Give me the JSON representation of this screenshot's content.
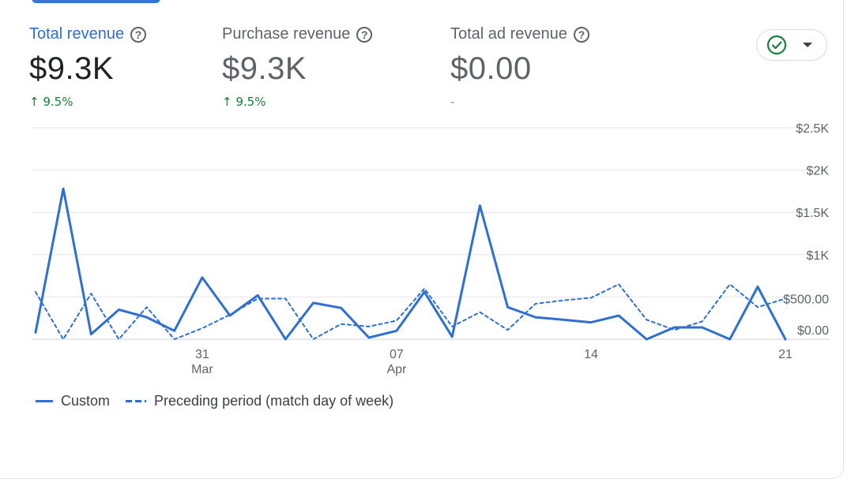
{
  "metrics": [
    {
      "title": "Total revenue",
      "value": "$9.3K",
      "change": "↑ 9.5%"
    },
    {
      "title": "Purchase revenue",
      "value": "$9.3K",
      "change": "↑ 9.5%"
    },
    {
      "title": "Total ad revenue",
      "value": "$0.00",
      "change": "-"
    }
  ],
  "colors": {
    "accent": "#2f6fd1",
    "positive": "#188038",
    "grid": "#e6e6e6"
  },
  "status_icon": "check-circle-icon",
  "chart_data": {
    "type": "line",
    "ylim": [
      0,
      2500
    ],
    "y_ticks": [
      {
        "value": 2500,
        "label": "$2.5K"
      },
      {
        "value": 2000,
        "label": "$2K"
      },
      {
        "value": 1500,
        "label": "$1.5K"
      },
      {
        "value": 1000,
        "label": "$1K"
      },
      {
        "value": 500,
        "label": "$500.00"
      },
      {
        "value": 0,
        "label": "$0.00"
      }
    ],
    "x_ticks": [
      {
        "index": 6,
        "day": "31",
        "month": "Mar"
      },
      {
        "index": 13,
        "day": "07",
        "month": "Apr"
      },
      {
        "index": 20,
        "day": "14",
        "month": ""
      },
      {
        "index": 27,
        "day": "21",
        "month": ""
      }
    ],
    "series": [
      {
        "name": "Custom",
        "style": "solid",
        "values": [
          80,
          1780,
          60,
          350,
          260,
          100,
          730,
          280,
          520,
          0,
          430,
          370,
          20,
          100,
          560,
          30,
          1580,
          380,
          260,
          230,
          200,
          280,
          0,
          140,
          140,
          0,
          620,
          0
        ]
      },
      {
        "name": "Preceding period (match day of week)",
        "style": "dashed",
        "values": [
          560,
          0,
          540,
          0,
          380,
          0,
          130,
          290,
          480,
          480,
          0,
          180,
          150,
          220,
          600,
          150,
          320,
          110,
          420,
          460,
          490,
          650,
          230,
          110,
          210,
          650,
          380,
          480
        ]
      }
    ]
  }
}
